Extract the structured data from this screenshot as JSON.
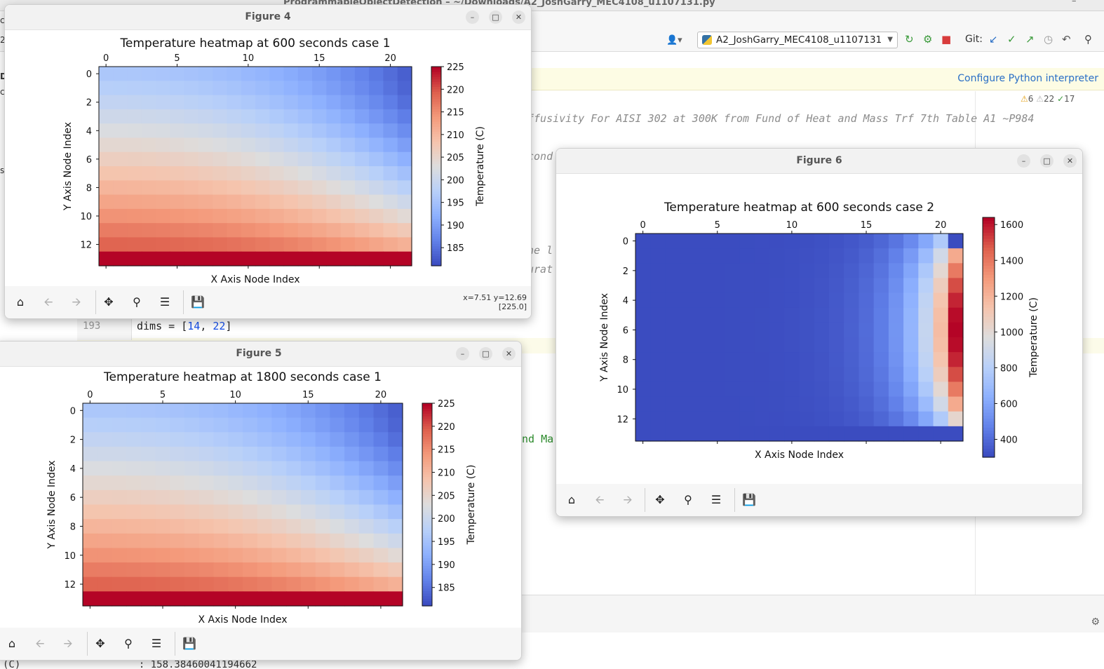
{
  "ide": {
    "title": "ProgrammableObjectDetection – ~/Downloads/A2_JoshGarry_MEC4108_u1107131.py",
    "run_config": "A2_JoshGarry_MEC4108_u1107131",
    "git_label": "Git:",
    "banner_link": "Configure Python interpreter",
    "inspections": {
      "warnings": "6",
      "weak_warnings": "22",
      "typos": "17"
    },
    "code_fragments": {
      "comment_line": "ffusivity For AISI 302 at 300K from Fund of Heat and Mass Trf 7th Table A1 ~P984",
      "frag_cond": "cond",
      "frag_he": "he l",
      "frag_urat": "urat",
      "frag_ma": "nd Ma"
    },
    "line_193": {
      "number": "193",
      "var": "dims",
      "op": " = [",
      "v1": "14",
      "sep": ", ",
      "v2": "22",
      "close": "]"
    },
    "console_line": "(C)                    : 158.38460041194662",
    "left_fragments": [
      "c",
      "2",
      "D",
      "c",
      "s"
    ]
  },
  "figures": [
    {
      "id": "fig4",
      "window_title": "Figure 4",
      "chart_title": "Temperature heatmap at 600 seconds case 1",
      "coords_text": "x=7.51 y=12.69\n[225.0]",
      "chart_data": {
        "type": "heatmap",
        "title": "Temperature heatmap at 600 seconds case 1",
        "xlabel": "X Axis Node Index",
        "ylabel": "Y Axis Node Index",
        "colorbar_label": "Temperature (C)",
        "rows": 14,
        "cols": 22,
        "x_ticks": [
          0,
          5,
          10,
          15,
          20
        ],
        "y_ticks": [
          0,
          2,
          4,
          6,
          8,
          10,
          12
        ],
        "vmin": 181,
        "vmax": 225,
        "colorbar_ticks": [
          185,
          190,
          195,
          200,
          205,
          210,
          215,
          220,
          225
        ],
        "colormap": "coolwarm",
        "pattern": "top-right cold ~183, bottom row hot 225",
        "model": {
          "top_left": 196,
          "top_right": 183,
          "row12": 219,
          "bottom_row": 225
        }
      }
    },
    {
      "id": "fig5",
      "window_title": "Figure 5",
      "chart_title": "Temperature heatmap at 1800 seconds case 1",
      "coords_text": "",
      "chart_data": {
        "type": "heatmap",
        "title": "Temperature heatmap at 1800 seconds case 1",
        "xlabel": "X Axis Node Index",
        "ylabel": "Y Axis Node Index",
        "colorbar_label": "Temperature (C)",
        "rows": 14,
        "cols": 22,
        "x_ticks": [
          0,
          5,
          10,
          15,
          20
        ],
        "y_ticks": [
          0,
          2,
          4,
          6,
          8,
          10,
          12
        ],
        "vmin": 181,
        "vmax": 225,
        "colorbar_ticks": [
          185,
          190,
          195,
          200,
          205,
          210,
          215,
          220,
          225
        ],
        "colormap": "coolwarm",
        "pattern": "top-right cold ~183, bottom row hot 225",
        "model": {
          "top_left": 196,
          "top_right": 183,
          "row12": 219,
          "bottom_row": 225
        }
      }
    },
    {
      "id": "fig6",
      "window_title": "Figure 6",
      "chart_title": "Temperature heatmap at 600 seconds case 2",
      "coords_text": "",
      "chart_data": {
        "type": "heatmap",
        "title": "Temperature heatmap at 600 seconds case 2",
        "xlabel": "X Axis Node Index",
        "ylabel": "Y Axis Node Index",
        "colorbar_label": "Temperature (C)",
        "rows": 14,
        "cols": 22,
        "x_ticks": [
          0,
          5,
          10,
          15,
          20
        ],
        "y_ticks": [
          0,
          2,
          4,
          6,
          8,
          10,
          12
        ],
        "vmin": 300,
        "vmax": 1640,
        "colorbar_ticks": [
          400,
          600,
          800,
          1000,
          1200,
          1400,
          1600
        ],
        "colormap": "coolwarm",
        "pattern": "right edge hot peak ~1640 at rows 5-7, bottom row and top-right corner cold 300",
        "model": {
          "base": 300,
          "peak": 1640
        }
      }
    }
  ],
  "toolbar_icons": [
    "home-icon",
    "back-arrow-icon",
    "forward-arrow-icon",
    "pan-icon",
    "zoom-icon",
    "configure-subplots-icon",
    "save-icon"
  ],
  "colors": {
    "link": "#2a6fc6",
    "banner_bg": "#fdfce4"
  }
}
